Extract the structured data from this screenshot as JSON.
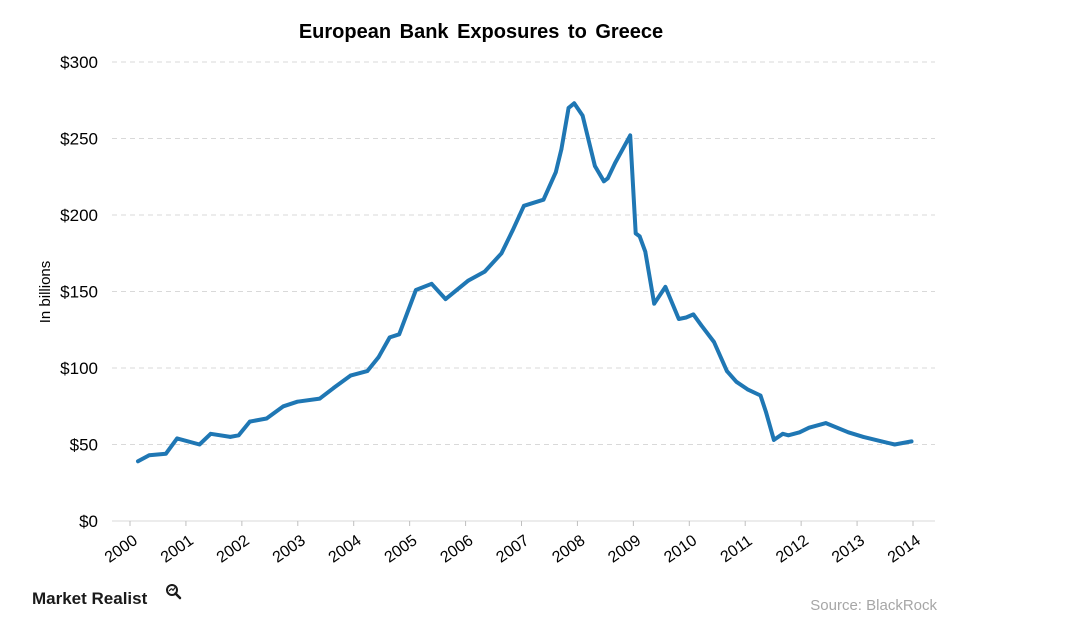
{
  "colors": {
    "series": "#1f77b4",
    "grid": "#d9d9d9",
    "brand_icon": "#1a1a1a"
  },
  "brand": {
    "name": "Market Realist",
    "icon": "magnifier-icon"
  },
  "source": "Source: BlackRock",
  "chart_data": {
    "type": "line",
    "title": "European Bank Exposures to Greece",
    "xlabel": "",
    "ylabel": "In billions",
    "ylim": [
      0,
      300
    ],
    "xlim": [
      2000,
      2014
    ],
    "grid": true,
    "legend": "none",
    "y_ticks": [
      {
        "value": 0,
        "label": "$0"
      },
      {
        "value": 50,
        "label": "$50"
      },
      {
        "value": 100,
        "label": "$100"
      },
      {
        "value": 150,
        "label": "$150"
      },
      {
        "value": 200,
        "label": "$200"
      },
      {
        "value": 250,
        "label": "$250"
      },
      {
        "value": 300,
        "label": "$300"
      }
    ],
    "x_ticks": [
      {
        "value": 2000,
        "label": "2000"
      },
      {
        "value": 2001,
        "label": "2001"
      },
      {
        "value": 2002,
        "label": "2002"
      },
      {
        "value": 2003,
        "label": "2003"
      },
      {
        "value": 2004,
        "label": "2004"
      },
      {
        "value": 2005,
        "label": "2005"
      },
      {
        "value": 2006,
        "label": "2006"
      },
      {
        "value": 2007,
        "label": "2007"
      },
      {
        "value": 2008,
        "label": "2008"
      },
      {
        "value": 2009,
        "label": "2009"
      },
      {
        "value": 2010,
        "label": "2010"
      },
      {
        "value": 2011,
        "label": "2011"
      },
      {
        "value": 2012,
        "label": "2012"
      },
      {
        "value": 2013,
        "label": "2013"
      },
      {
        "value": 2014,
        "label": "2014"
      }
    ],
    "series": [
      {
        "x": [
          2000.25,
          2000.45,
          2000.75,
          2000.95,
          2001.35,
          2001.55,
          2001.9,
          2002.05,
          2002.25,
          2002.55,
          2002.85,
          2003.1,
          2003.5,
          2003.75,
          2004.05,
          2004.35,
          2004.55,
          2004.75,
          2004.92,
          2005.22,
          2005.5,
          2005.75,
          2006.15,
          2006.45,
          2006.75,
          2006.95,
          2007.15,
          2007.5,
          2007.72,
          2007.82,
          2007.95,
          2008.05,
          2008.2,
          2008.42,
          2008.58,
          2008.65,
          2008.78,
          2009.05,
          2009.15,
          2009.22,
          2009.32,
          2009.48,
          2009.68,
          2009.92,
          2010.05,
          2010.18,
          2010.32,
          2010.55,
          2010.78,
          2010.95,
          2011.15,
          2011.38,
          2011.48,
          2011.62,
          2011.78,
          2011.88,
          2012.08,
          2012.25,
          2012.55,
          2012.95,
          2013.22,
          2013.55,
          2013.78,
          2014.08
        ],
        "y": [
          39,
          43,
          44,
          54,
          50,
          57,
          55,
          56,
          65,
          67,
          75,
          78,
          80,
          87,
          95,
          98,
          107,
          120,
          122,
          151,
          155,
          145,
          157,
          163,
          175,
          190,
          206,
          210,
          228,
          243,
          270,
          273,
          265,
          232,
          222,
          224,
          234,
          252,
          188,
          186,
          176,
          142,
          153,
          132,
          133,
          135,
          128,
          117,
          98,
          91,
          86,
          82,
          71,
          53,
          57,
          56,
          58,
          61,
          64,
          58,
          55,
          52,
          50,
          52
        ]
      }
    ]
  }
}
